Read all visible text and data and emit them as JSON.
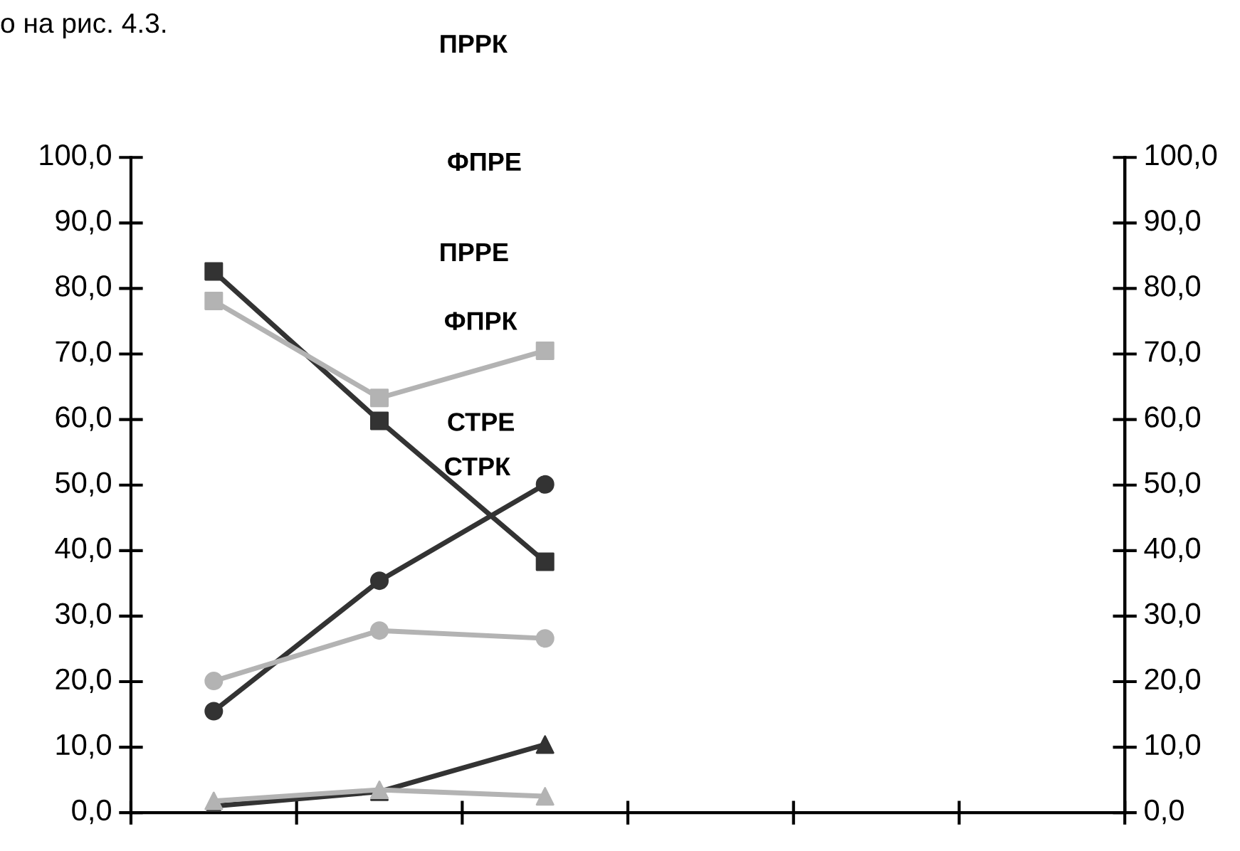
{
  "chart_data": {
    "type": "line",
    "categories": [
      null,
      null,
      null,
      null,
      null,
      null
    ],
    "series": [
      {
        "color": "#333333",
        "marker": "square",
        "values": [
          82.6,
          59.8,
          38.3,
          null,
          null,
          null
        ]
      },
      {
        "color": "#b3b3b3",
        "marker": "square",
        "values": [
          78.1,
          63.3,
          70.5,
          null,
          null,
          null
        ]
      },
      {
        "color": "#333333",
        "marker": "circle",
        "values": [
          15.5,
          35.4,
          50.1,
          null,
          null,
          null
        ]
      },
      {
        "color": "#b3b3b3",
        "marker": "circle",
        "values": [
          20.1,
          27.8,
          26.6,
          null,
          null,
          null
        ]
      },
      {
        "color": "#333333",
        "marker": "triangle",
        "values": [
          1.0,
          3.2,
          10.4,
          null,
          null,
          null
        ]
      },
      {
        "color": "#b3b3b3",
        "marker": "triangle",
        "values": [
          1.8,
          3.5,
          2.5,
          null,
          null,
          null
        ]
      }
    ],
    "ylim": [
      0,
      100
    ],
    "yticks": [
      {
        "value": 0,
        "label": "0,0"
      },
      {
        "value": 10,
        "label": "10,0"
      },
      {
        "value": 20,
        "label": "20,0"
      },
      {
        "value": 30,
        "label": "30,0"
      },
      {
        "value": 40,
        "label": "40,0"
      },
      {
        "value": 50,
        "label": "50,0"
      },
      {
        "value": 60,
        "label": "60,0"
      },
      {
        "value": 70,
        "label": "70,0"
      },
      {
        "value": 80,
        "label": "80,0"
      },
      {
        "value": 90,
        "label": "90,0"
      },
      {
        "value": 100,
        "label": "100,0"
      }
    ],
    "y2lim": [
      0,
      100
    ],
    "y2ticks": [
      {
        "value": 0,
        "label": "0,0"
      },
      {
        "value": 10,
        "label": "10,0"
      },
      {
        "value": 20,
        "label": "20,0"
      },
      {
        "value": 30,
        "label": "30,0"
      },
      {
        "value": 40,
        "label": "40,0"
      },
      {
        "value": 50,
        "label": "50,0"
      },
      {
        "value": 60,
        "label": "60,0"
      },
      {
        "value": 70,
        "label": "70,0"
      },
      {
        "value": 80,
        "label": "80,0"
      },
      {
        "value": 90,
        "label": "90,0"
      },
      {
        "value": 100,
        "label": "100,0"
      }
    ],
    "tick_labels": "y",
    "grid": false,
    "line_style": "solid",
    "annotations": [
      "о на рис. 4.3.",
      "ПРРК",
      "ФПРЕ",
      "ПРРЕ",
      "ФПРК",
      "СТРЕ",
      "СТРК"
    ]
  }
}
